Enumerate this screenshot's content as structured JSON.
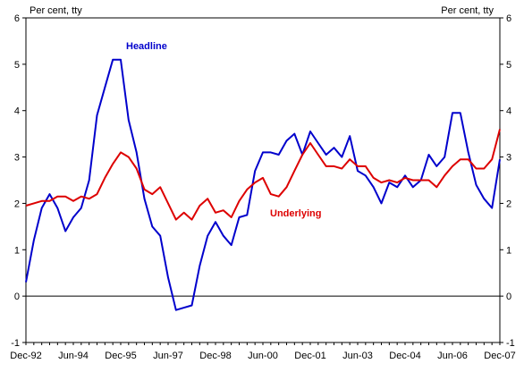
{
  "chart_data": {
    "type": "line",
    "title": "",
    "xlabel": "",
    "ylabel_left": "Per cent, tty",
    "ylabel_right": "Per cent, tty",
    "ylim": [
      -1,
      6
    ],
    "yticks": [
      "-1",
      "0",
      "1",
      "2",
      "3",
      "4",
      "5",
      "6"
    ],
    "x_tick_labels": [
      "Dec-92",
      "Jun-94",
      "Dec-95",
      "Jun-97",
      "Dec-98",
      "Jun-00",
      "Dec-01",
      "Jun-03",
      "Dec-04",
      "Jun-06",
      "Dec-07"
    ],
    "x_start": "Dec-92",
    "x_end": "Dec-07",
    "frequency": "quarterly",
    "grid": false,
    "zero_line": true,
    "legend": "inline labels",
    "series": [
      {
        "name": "Headline",
        "color": "#0000cc",
        "values": [
          0.3,
          1.2,
          1.9,
          2.2,
          1.9,
          1.4,
          1.7,
          1.9,
          2.5,
          3.9,
          4.5,
          5.1,
          5.1,
          3.8,
          3.1,
          2.1,
          1.5,
          1.3,
          0.4,
          -0.3,
          -0.25,
          -0.2,
          0.65,
          1.3,
          1.6,
          1.3,
          1.1,
          1.7,
          1.75,
          2.7,
          3.1,
          3.1,
          3.05,
          3.35,
          3.5,
          3.05,
          3.55,
          3.3,
          3.05,
          3.2,
          3.0,
          3.45,
          2.7,
          2.6,
          2.35,
          2.0,
          2.45,
          2.35,
          2.6,
          2.35,
          2.5,
          3.05,
          2.8,
          3.0,
          3.95,
          3.95,
          3.1,
          2.4,
          2.1,
          1.9,
          2.95
        ]
      },
      {
        "name": "Underlying",
        "color": "#dd0000",
        "values": [
          1.95,
          2.0,
          2.05,
          2.05,
          2.15,
          2.15,
          2.05,
          2.15,
          2.1,
          2.2,
          2.55,
          2.85,
          3.1,
          3.0,
          2.75,
          2.3,
          2.2,
          2.35,
          2.0,
          1.65,
          1.8,
          1.65,
          1.95,
          2.1,
          1.8,
          1.85,
          1.7,
          2.05,
          2.3,
          2.45,
          2.55,
          2.2,
          2.15,
          2.35,
          2.7,
          3.05,
          3.3,
          3.05,
          2.8,
          2.8,
          2.75,
          2.95,
          2.8,
          2.8,
          2.55,
          2.45,
          2.5,
          2.45,
          2.55,
          2.5,
          2.5,
          2.5,
          2.35,
          2.6,
          2.8,
          2.95,
          2.95,
          2.75,
          2.75,
          2.95,
          3.6
        ]
      }
    ]
  }
}
